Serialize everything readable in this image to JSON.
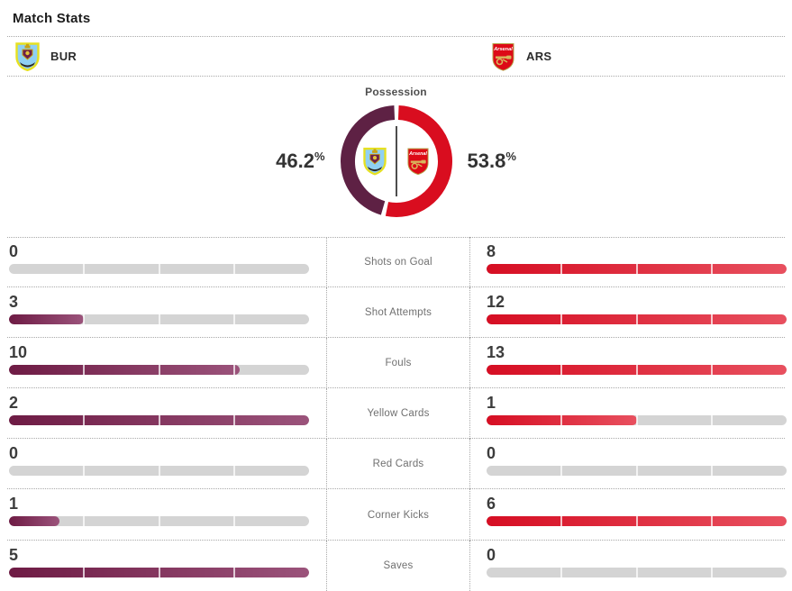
{
  "header": {
    "title": "Match Stats"
  },
  "teams": {
    "home": {
      "abbr": "BUR",
      "crest": "burnley-crest"
    },
    "away": {
      "abbr": "ARS",
      "crest": "arsenal-crest",
      "crest_text": "Arsenal"
    }
  },
  "possession": {
    "title": "Possession",
    "home_pct": "46.2",
    "away_pct": "53.8",
    "percent": "%"
  },
  "stats": {
    "rows": [
      {
        "label": "Shots on Goal",
        "home": 0,
        "away": 8
      },
      {
        "label": "Shot Attempts",
        "home": 3,
        "away": 12
      },
      {
        "label": "Fouls",
        "home": 10,
        "away": 13
      },
      {
        "label": "Yellow Cards",
        "home": 2,
        "away": 1
      },
      {
        "label": "Red Cards",
        "home": 0,
        "away": 0
      },
      {
        "label": "Corner Kicks",
        "home": 1,
        "away": 6
      },
      {
        "label": "Saves",
        "home": 5,
        "away": 0
      }
    ]
  },
  "colors": {
    "home_donut": "#5e2144",
    "away_donut": "#d90d1f",
    "home_gradient": [
      "#6e1b44",
      "#9b537b"
    ],
    "away_gradient": [
      "#d60e23",
      "#e8505f"
    ],
    "track": "#d4d4d4"
  },
  "chart_data": [
    {
      "type": "pie",
      "title": "Possession",
      "labels": [
        "BUR",
        "ARS"
      ],
      "values": [
        46.2,
        53.8
      ],
      "colors": [
        "#5e2144",
        "#d90d1f"
      ],
      "layout": "donut, ARS starts at 12 o'clock clockwise, labels left/right of ring"
    },
    {
      "type": "bar",
      "title": "Match Stats",
      "categories": [
        "Shots on Goal",
        "Shot Attempts",
        "Fouls",
        "Yellow Cards",
        "Red Cards",
        "Corner Kicks",
        "Saves"
      ],
      "series": [
        {
          "name": "BUR",
          "values": [
            0,
            3,
            10,
            2,
            0,
            1,
            5
          ]
        },
        {
          "name": "ARS",
          "values": [
            8,
            12,
            13,
            1,
            0,
            6,
            0
          ]
        }
      ],
      "layout": "paired horizontal bars; each bar length = value / max(home, away) of its row; 4-segment track"
    }
  ]
}
